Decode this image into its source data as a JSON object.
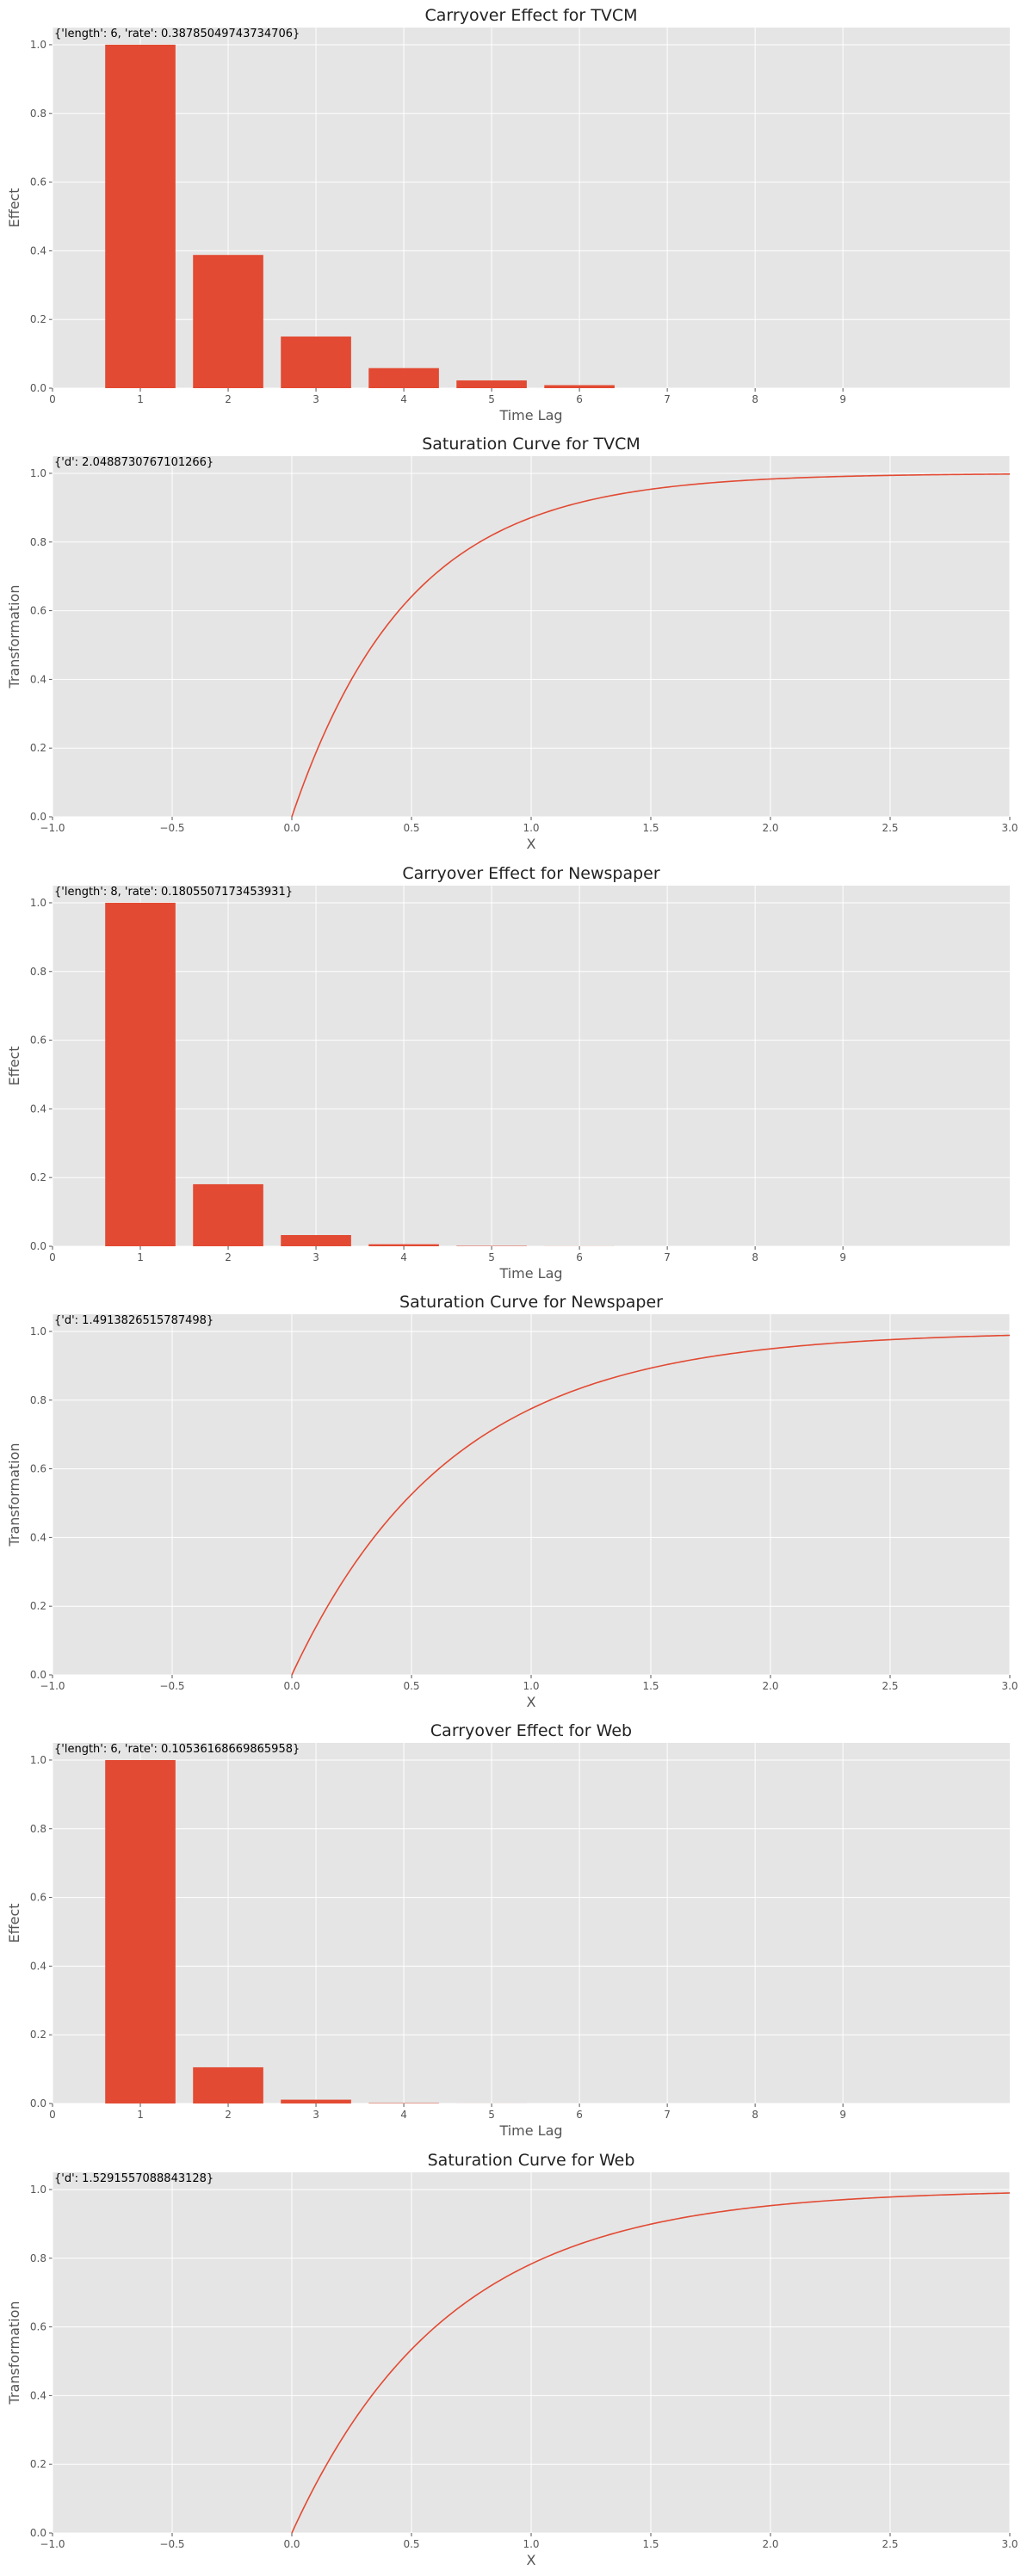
{
  "style": {
    "axes_background": "#e5e5e5",
    "grid_color": "#ffffff",
    "bar_color": "#e24a33",
    "line_color": "#e24a33"
  },
  "chart_data": [
    {
      "type": "bar",
      "title": "Carryover Effect for TVCM",
      "annotation": "{'length': 6, 'rate': 0.38785049743734706}",
      "xlabel": "Time Lag",
      "ylabel": "Effect",
      "x": [
        1,
        2,
        3,
        4,
        5,
        6
      ],
      "values": [
        1.0,
        0.3879,
        0.1504,
        0.0584,
        0.0226,
        0.0088
      ],
      "xlim": [
        0,
        10.9
      ],
      "ylim": [
        0,
        1.05
      ],
      "xticks": [
        0,
        1,
        2,
        3,
        4,
        5,
        6,
        7,
        8,
        9
      ],
      "yticks": [
        0.0,
        0.2,
        0.4,
        0.6,
        0.8,
        1.0
      ],
      "grid": true
    },
    {
      "type": "line",
      "title": "Saturation Curve for TVCM",
      "annotation": "{'d': 2.0488730767101266}",
      "xlabel": "X",
      "ylabel": "Transformation",
      "function": "1 - exp(-d*x)",
      "d": 2.0488730767101266,
      "x_range": [
        0,
        3
      ],
      "xlim": [
        -1.0,
        3.0
      ],
      "ylim": [
        0,
        1.05
      ],
      "xticks": [
        "−1.0",
        "−0.5",
        "0.0",
        "0.5",
        "1.0",
        "1.5",
        "2.0",
        "2.5",
        "3.0"
      ],
      "yticks": [
        0.0,
        0.2,
        0.4,
        0.6,
        0.8,
        1.0
      ],
      "grid": true
    },
    {
      "type": "bar",
      "title": "Carryover Effect for Newspaper",
      "annotation": "{'length': 8, 'rate': 0.1805507173453931}",
      "xlabel": "Time Lag",
      "ylabel": "Effect",
      "x": [
        1,
        2,
        3,
        4,
        5,
        6,
        7,
        8
      ],
      "values": [
        1.0,
        0.1806,
        0.0326,
        0.0059,
        0.0011,
        0.0002,
        0.0,
        0.0
      ],
      "xlim": [
        0,
        10.9
      ],
      "ylim": [
        0,
        1.05
      ],
      "xticks": [
        0,
        1,
        2,
        3,
        4,
        5,
        6,
        7,
        8,
        9
      ],
      "yticks": [
        0.0,
        0.2,
        0.4,
        0.6,
        0.8,
        1.0
      ],
      "grid": true
    },
    {
      "type": "line",
      "title": "Saturation Curve for Newspaper",
      "annotation": "{'d': 1.4913826515787498}",
      "xlabel": "X",
      "ylabel": "Transformation",
      "function": "1 - exp(-d*x)",
      "d": 1.4913826515787498,
      "x_range": [
        0,
        3
      ],
      "xlim": [
        -1.0,
        3.0
      ],
      "ylim": [
        0,
        1.05
      ],
      "xticks": [
        "−1.0",
        "−0.5",
        "0.0",
        "0.5",
        "1.0",
        "1.5",
        "2.0",
        "2.5",
        "3.0"
      ],
      "yticks": [
        0.0,
        0.2,
        0.4,
        0.6,
        0.8,
        1.0
      ],
      "grid": true
    },
    {
      "type": "bar",
      "title": "Carryover Effect for Web",
      "annotation": "{'length': 6, 'rate': 0.10536168669865958}",
      "xlabel": "Time Lag",
      "ylabel": "Effect",
      "x": [
        1,
        2,
        3,
        4,
        5,
        6
      ],
      "values": [
        1.0,
        0.1054,
        0.0111,
        0.0012,
        0.0001,
        0.0
      ],
      "xlim": [
        0,
        10.9
      ],
      "ylim": [
        0,
        1.05
      ],
      "xticks": [
        0,
        1,
        2,
        3,
        4,
        5,
        6,
        7,
        8,
        9
      ],
      "yticks": [
        0.0,
        0.2,
        0.4,
        0.6,
        0.8,
        1.0
      ],
      "grid": true
    },
    {
      "type": "line",
      "title": "Saturation Curve for Web",
      "annotation": "{'d': 1.5291557088843128}",
      "xlabel": "X",
      "ylabel": "Transformation",
      "function": "1 - exp(-d*x)",
      "d": 1.5291557088843128,
      "x_range": [
        0,
        3
      ],
      "xlim": [
        -1.0,
        3.0
      ],
      "ylim": [
        0,
        1.05
      ],
      "xticks": [
        "−1.0",
        "−0.5",
        "0.0",
        "0.5",
        "1.0",
        "1.5",
        "2.0",
        "2.5",
        "3.0"
      ],
      "yticks": [
        0.0,
        0.2,
        0.4,
        0.6,
        0.8,
        1.0
      ],
      "grid": true
    }
  ]
}
